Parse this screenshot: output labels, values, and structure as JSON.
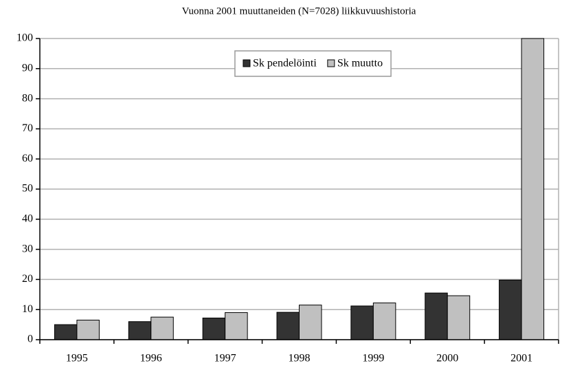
{
  "chart_data": {
    "type": "bar",
    "title": "Vuonna 2001 muuttaneiden (N=7028) liikkuvuushistoria",
    "categories": [
      "1995",
      "1996",
      "1997",
      "1998",
      "1999",
      "2000",
      "2001"
    ],
    "series": [
      {
        "name": "Sk pendelöinti",
        "color": "#333333",
        "values": [
          5,
          6,
          7.2,
          9.1,
          11.2,
          15.5,
          19.8
        ]
      },
      {
        "name": "Sk muutto",
        "color": "#c0c0c0",
        "values": [
          6.5,
          7.5,
          9,
          11.5,
          12.2,
          14.6,
          100
        ]
      }
    ],
    "ylim": [
      0,
      100
    ],
    "yticks": [
      0,
      10,
      20,
      30,
      40,
      50,
      60,
      70,
      80,
      90,
      100
    ],
    "grid": true,
    "legend": "top"
  }
}
